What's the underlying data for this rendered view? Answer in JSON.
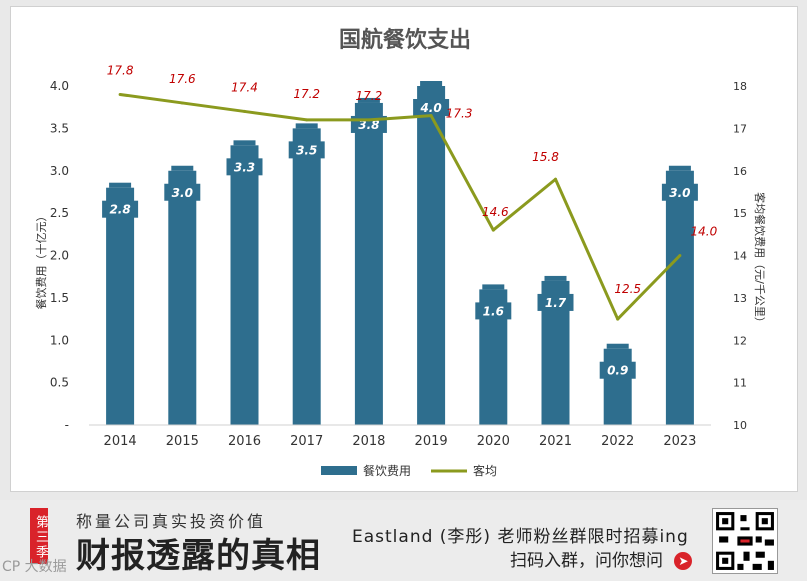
{
  "chart_data": {
    "type": "bar+line",
    "title": "国航餐饮支出",
    "categories": [
      "2014",
      "2015",
      "2016",
      "2017",
      "2018",
      "2019",
      "2020",
      "2021",
      "2022",
      "2023"
    ],
    "series": [
      {
        "name": "餐饮费用",
        "type": "bar",
        "axis": "left",
        "color": "#2e6e8e",
        "values": [
          2.8,
          3.0,
          3.3,
          3.5,
          3.8,
          4.0,
          1.6,
          1.7,
          0.9,
          3.0
        ],
        "labels": [
          "2.8",
          "3.0",
          "3.3",
          "3.5",
          "3.8",
          "4.0",
          "1.6",
          "1.7",
          "0.9",
          "3.0"
        ]
      },
      {
        "name": "客均",
        "type": "line",
        "axis": "right",
        "color": "#8b9a1e",
        "values": [
          17.8,
          17.6,
          17.4,
          17.2,
          17.2,
          17.3,
          14.6,
          15.8,
          12.5,
          14.0
        ],
        "labels": [
          "17.8",
          "17.6",
          "17.4",
          "17.2",
          "17.2",
          "17.3",
          "14.6",
          "15.8",
          "12.5",
          "14.0"
        ]
      }
    ],
    "y_left": {
      "label": "餐饮费用（十亿元）",
      "min": 0,
      "max": 4.0,
      "ticks": [
        "-",
        "0.5",
        "1.0",
        "1.5",
        "2.0",
        "2.5",
        "3.0",
        "3.5",
        "4.0"
      ]
    },
    "y_right": {
      "label": "客均餐饮费用（元/千公里）",
      "min": 10,
      "max": 18,
      "ticks": [
        "10",
        "11",
        "12",
        "13",
        "14",
        "15",
        "16",
        "17",
        "18"
      ]
    },
    "legend_position": "bottom",
    "grid": false,
    "line_label_color": "#c00000"
  },
  "banner": {
    "season_tag": "第三季",
    "slogan": "称量公司真实投资价值",
    "brand_title": "财报透露的真相",
    "recruit_text": "Eastland (李彤) 老师粉丝群限时招募ing",
    "scan_text": "扫码入群，问你想问",
    "arrow_icon": "arrow-right-circle-icon",
    "watermark": "CP 大数据"
  }
}
